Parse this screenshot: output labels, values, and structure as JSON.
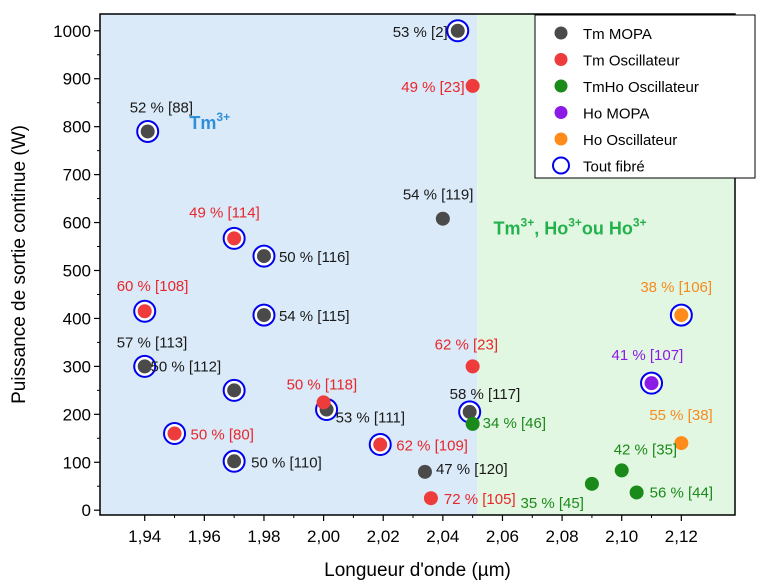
{
  "chart_data": {
    "type": "scatter",
    "xlabel": "Longueur d'onde (µm)",
    "ylabel": "Puissance de sortie continue (W)",
    "xlim": [
      1.925,
      2.138
    ],
    "ylim": [
      -10,
      1035
    ],
    "x_ticks": [
      1.94,
      1.96,
      1.98,
      2.0,
      2.02,
      2.04,
      2.06,
      2.08,
      2.1,
      2.12
    ],
    "x_tick_labels": [
      "1,94",
      "1,96",
      "1,98",
      "2,00",
      "2,02",
      "2,04",
      "2,06",
      "2,08",
      "2,10",
      "2,12"
    ],
    "y_ticks": [
      0,
      100,
      200,
      300,
      400,
      500,
      600,
      700,
      800,
      900,
      1000
    ],
    "y_tick_labels": [
      "0",
      "100",
      "200",
      "300",
      "400",
      "500",
      "600",
      "700",
      "800",
      "900",
      "1000"
    ],
    "regions": [
      {
        "x_from": 1.925,
        "x_to": 2.0515,
        "color": "#daeaf8"
      },
      {
        "x_from": 2.0515,
        "x_to": 2.138,
        "color": "#e2f7e2"
      }
    ],
    "region_labels": [
      {
        "base": "Tm",
        "sup": "3+",
        "x": 1.955,
        "y": 795,
        "color": "#2f8fd8"
      },
      {
        "parts": [
          {
            "t": "Tm",
            "sup": "3+"
          },
          {
            "t": ", Ho",
            "sup": "3+"
          },
          {
            "t": "ou Ho",
            "sup": "3+"
          }
        ],
        "x": 2.057,
        "y": 575,
        "color": "#22b14c"
      }
    ],
    "series": [
      {
        "name": "Tm MOPA",
        "color": "#4a4a4a",
        "label_color": "#1a1a1a",
        "points": [
          {
            "x": 2.045,
            "y": 1000,
            "label": "53 % [2]",
            "ring": true
          },
          {
            "x": 1.941,
            "y": 790,
            "label": "52 % [88]",
            "ring": true
          },
          {
            "x": 2.04,
            "y": 608,
            "label": "54 % [119]",
            "ring": false
          },
          {
            "x": 1.98,
            "y": 530,
            "label": "50 % [116]",
            "ring": true
          },
          {
            "x": 1.98,
            "y": 407,
            "label": "54 % [115]",
            "ring": true
          },
          {
            "x": 1.94,
            "y": 300,
            "label": "57 % [113]",
            "ring": true
          },
          {
            "x": 1.97,
            "y": 250,
            "label": "50 % [112]",
            "ring": true
          },
          {
            "x": 2.001,
            "y": 210,
            "label": "53 % [111]",
            "ring": true
          },
          {
            "x": 2.049,
            "y": 205,
            "label": "58 % [117]",
            "ring": true
          },
          {
            "x": 1.97,
            "y": 102,
            "label": "50 % [110]",
            "ring": true
          },
          {
            "x": 2.034,
            "y": 80,
            "label": "47 % [120]",
            "ring": false
          }
        ]
      },
      {
        "name": "Tm Oscillateur",
        "color": "#ee3b3b",
        "label_color": "#e8262b",
        "points": [
          {
            "x": 2.05,
            "y": 885,
            "label": "49 % [23]",
            "ring": false
          },
          {
            "x": 1.97,
            "y": 567,
            "label": "49 % [114]",
            "ring": true
          },
          {
            "x": 1.94,
            "y": 415,
            "label": "60 % [108]",
            "ring": true
          },
          {
            "x": 2.05,
            "y": 300,
            "label": "62 % [23]",
            "ring": false
          },
          {
            "x": 2.0,
            "y": 225,
            "label": "50 % [118]",
            "ring": false
          },
          {
            "x": 1.95,
            "y": 160,
            "label": "50 % [80]",
            "ring": true
          },
          {
            "x": 2.019,
            "y": 137,
            "label": "62 % [109]",
            "ring": true
          },
          {
            "x": 2.036,
            "y": 25,
            "label": "72 % [105]",
            "ring": false
          }
        ]
      },
      {
        "name": "TmHo Oscillateur",
        "color": "#1a8a1a",
        "label_color": "#1a8a1a",
        "points": [
          {
            "x": 2.05,
            "y": 180,
            "label": "34 % [46]",
            "ring": false
          },
          {
            "x": 2.1,
            "y": 83,
            "label": "42 % [35]",
            "ring": false
          },
          {
            "x": 2.09,
            "y": 55,
            "label": "35 % [45]",
            "ring": false
          },
          {
            "x": 2.105,
            "y": 37,
            "label": "56 % [44]",
            "ring": false
          }
        ]
      },
      {
        "name": "Ho MOPA",
        "color": "#8b1ae6",
        "label_color": "#8b1ae6",
        "points": [
          {
            "x": 2.11,
            "y": 265,
            "label": "41 % [107]",
            "ring": true
          }
        ]
      },
      {
        "name": "Ho Oscillateur",
        "color": "#ff8c1a",
        "label_color": "#f58a1f",
        "points": [
          {
            "x": 2.12,
            "y": 407,
            "label": "38 % [106]",
            "ring": true
          },
          {
            "x": 2.12,
            "y": 140,
            "label": "55 % [38]",
            "ring": false
          }
        ]
      }
    ],
    "ring_legend": {
      "name": "Tout fibré",
      "color": "#0000ee"
    },
    "legend_position": "top-right"
  }
}
